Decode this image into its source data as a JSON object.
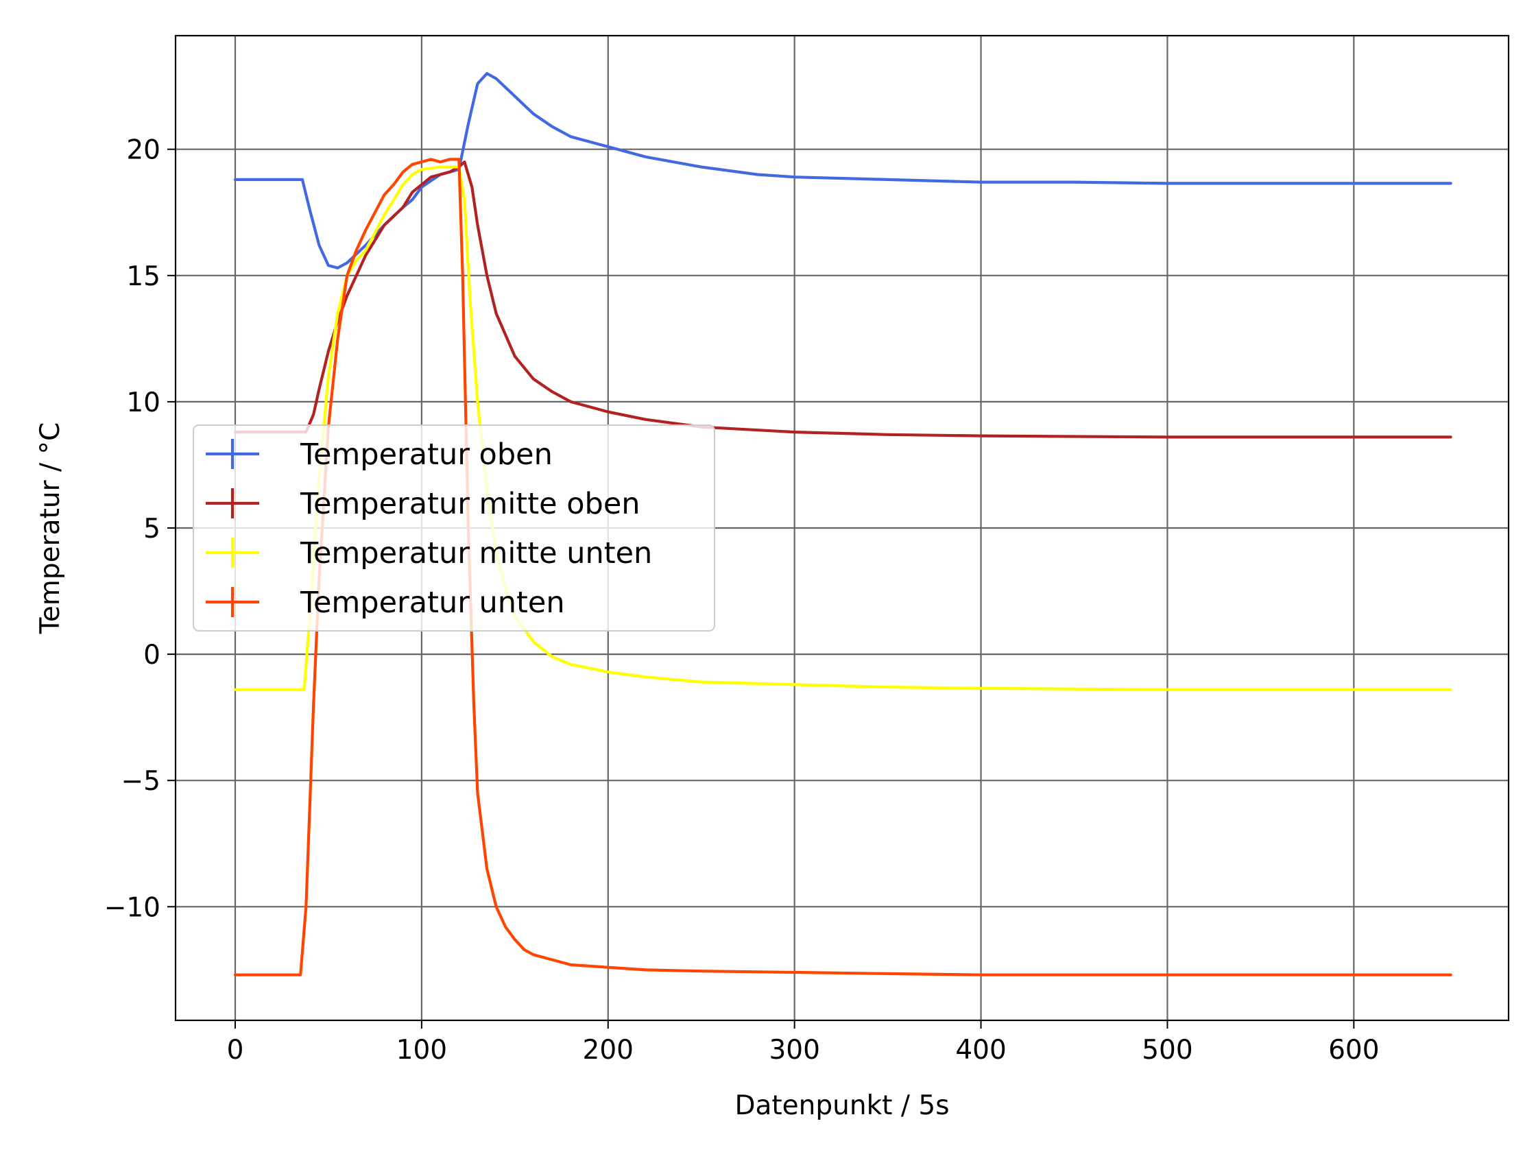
{
  "chart_data": {
    "type": "line",
    "title": "",
    "xlabel": "Datenpunkt / 5s",
    "ylabel": "Temperatur / °C",
    "xlim": [
      -32,
      683
    ],
    "ylim": [
      -14.5,
      24.5
    ],
    "xticks": [
      0,
      100,
      200,
      300,
      400,
      500,
      600
    ],
    "yticks": [
      -10,
      -5,
      0,
      5,
      10,
      15,
      20
    ],
    "xtick_labels": [
      "0",
      "100",
      "200",
      "300",
      "400",
      "500",
      "600"
    ],
    "ytick_labels": [
      "−10",
      "−5",
      "0",
      "5",
      "10",
      "15",
      "20"
    ],
    "grid": true,
    "legend_position": "center-left",
    "series": [
      {
        "name": "Temperatur oben",
        "color": "#4169e1",
        "x": [
          0,
          20,
          36,
          40,
          45,
          50,
          55,
          60,
          70,
          80,
          90,
          95,
          100,
          110,
          120,
          125,
          130,
          135,
          140,
          150,
          160,
          170,
          180,
          200,
          220,
          250,
          280,
          300,
          350,
          400,
          450,
          500,
          550,
          600,
          652
        ],
        "y": [
          18.8,
          18.8,
          18.8,
          17.6,
          16.2,
          15.4,
          15.3,
          15.5,
          16.2,
          17.0,
          17.7,
          18.0,
          18.5,
          19.0,
          19.2,
          21.0,
          22.6,
          23.0,
          22.8,
          22.1,
          21.4,
          20.9,
          20.5,
          20.1,
          19.7,
          19.3,
          19.0,
          18.9,
          18.8,
          18.7,
          18.7,
          18.65,
          18.65,
          18.65,
          18.65
        ]
      },
      {
        "name": "Temperatur mitte oben",
        "color": "#b22222",
        "x": [
          0,
          20,
          38,
          42,
          45,
          50,
          55,
          60,
          70,
          80,
          90,
          95,
          100,
          105,
          110,
          115,
          120,
          123,
          127,
          130,
          135,
          140,
          150,
          160,
          170,
          180,
          200,
          220,
          250,
          300,
          350,
          400,
          500,
          600,
          652
        ],
        "y": [
          8.8,
          8.8,
          8.8,
          9.5,
          10.5,
          12.0,
          13.2,
          14.2,
          15.8,
          17.0,
          17.7,
          18.3,
          18.6,
          18.9,
          19.0,
          19.1,
          19.3,
          19.5,
          18.5,
          17.0,
          15.0,
          13.5,
          11.8,
          10.9,
          10.4,
          10.0,
          9.6,
          9.3,
          9.0,
          8.8,
          8.7,
          8.65,
          8.6,
          8.6,
          8.6
        ]
      },
      {
        "name": "Temperatur mitte unten",
        "color": "#ffff00",
        "x": [
          0,
          20,
          37,
          40,
          45,
          50,
          55,
          60,
          65,
          70,
          75,
          80,
          85,
          90,
          95,
          100,
          110,
          120,
          123,
          126,
          130,
          135,
          140,
          145,
          150,
          160,
          170,
          180,
          200,
          220,
          250,
          300,
          350,
          400,
          500,
          600,
          652
        ],
        "y": [
          -1.4,
          -1.4,
          -1.4,
          1.5,
          7.0,
          11.0,
          13.5,
          15.0,
          15.6,
          16.0,
          16.7,
          17.4,
          18.0,
          18.6,
          19.0,
          19.2,
          19.3,
          19.3,
          18.0,
          14.0,
          10.0,
          6.5,
          4.0,
          2.6,
          1.5,
          0.5,
          -0.1,
          -0.4,
          -0.7,
          -0.9,
          -1.1,
          -1.2,
          -1.3,
          -1.35,
          -1.4,
          -1.4,
          -1.4
        ]
      },
      {
        "name": "Temperatur unten",
        "color": "#ff4500",
        "x": [
          0,
          20,
          35,
          38,
          40,
          42,
          45,
          50,
          55,
          60,
          65,
          70,
          75,
          80,
          85,
          90,
          95,
          100,
          105,
          110,
          115,
          120,
          122,
          125,
          128,
          130,
          135,
          140,
          145,
          150,
          155,
          160,
          170,
          180,
          200,
          220,
          250,
          300,
          350,
          400,
          500,
          600,
          652
        ],
        "y": [
          -12.7,
          -12.7,
          -12.7,
          -10.0,
          -6.0,
          -2.0,
          3.0,
          9.0,
          12.5,
          15.0,
          16.0,
          16.8,
          17.5,
          18.2,
          18.6,
          19.1,
          19.4,
          19.5,
          19.6,
          19.5,
          19.6,
          19.6,
          15.0,
          5.0,
          -2.0,
          -5.5,
          -8.5,
          -10.0,
          -10.8,
          -11.3,
          -11.7,
          -11.9,
          -12.1,
          -12.3,
          -12.4,
          -12.5,
          -12.55,
          -12.6,
          -12.65,
          -12.7,
          -12.7,
          -12.7,
          -12.7
        ]
      }
    ]
  }
}
